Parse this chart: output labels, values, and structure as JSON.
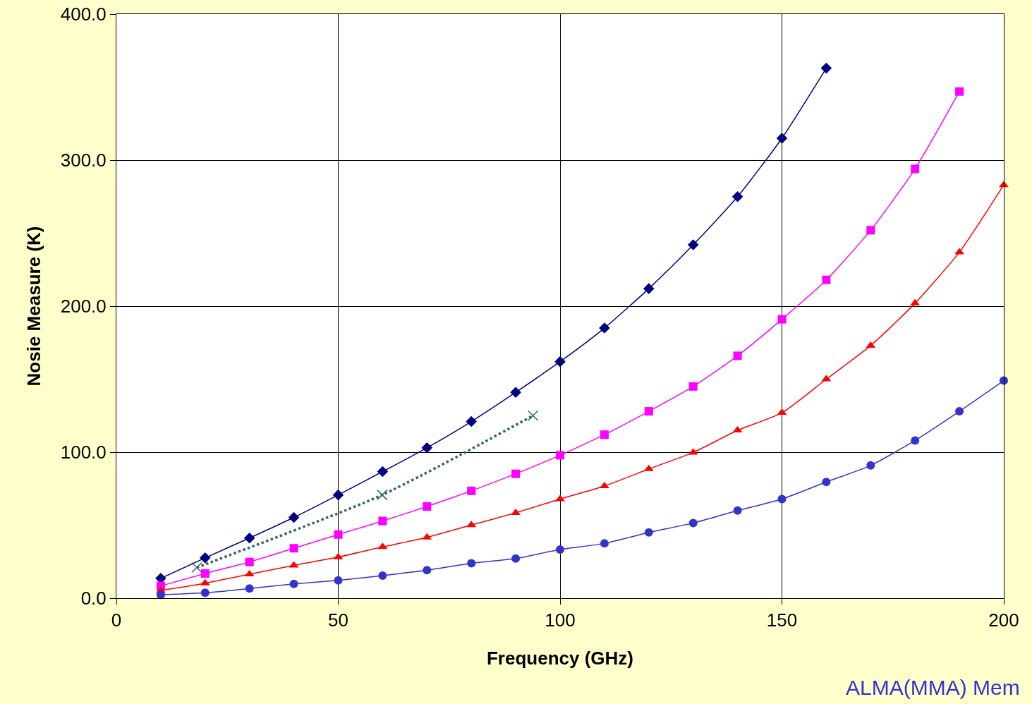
{
  "chart_data": {
    "type": "line",
    "xlabel": "Frequency (GHz)",
    "ylabel": "Nosie Measure (K)",
    "xlim": [
      0,
      200
    ],
    "xticks": [
      0,
      50,
      100,
      150,
      200
    ],
    "ylim": [
      0,
      400
    ],
    "yticks": [
      {
        "value": 0,
        "label": "0.0"
      },
      {
        "value": 100,
        "label": "100.0"
      },
      {
        "value": 200,
        "label": "200.0"
      },
      {
        "value": 300,
        "label": "300.0"
      },
      {
        "value": 400,
        "label": "400.0"
      }
    ],
    "grid": true,
    "annotations": [
      "ALMA(MMA) Mem"
    ],
    "series": [
      {
        "color": "#000080",
        "marker": "diamond",
        "line_style": "solid",
        "x": [
          10,
          20,
          30,
          40,
          50,
          60,
          70,
          80,
          90,
          100,
          110,
          120,
          130,
          140,
          150,
          160
        ],
        "values": [
          13.6,
          27.6,
          41.2,
          55.3,
          70.7,
          86.7,
          103,
          121,
          141,
          162,
          185,
          212,
          242,
          275,
          315,
          363
        ]
      },
      {
        "color": "#ff00ff",
        "marker": "square",
        "line_style": "solid",
        "x": [
          10,
          20,
          30,
          40,
          50,
          60,
          70,
          80,
          90,
          100,
          110,
          120,
          130,
          140,
          150,
          160,
          170,
          180,
          190
        ],
        "values": [
          8.4,
          16.9,
          24.8,
          34.2,
          43.6,
          52.9,
          62.8,
          73.5,
          85.2,
          97.9,
          112,
          128,
          145,
          166,
          191,
          218,
          252,
          294,
          347
        ]
      },
      {
        "color": "#ff0000",
        "marker": "triangle",
        "line_style": "solid",
        "x": [
          10,
          20,
          30,
          40,
          50,
          60,
          70,
          80,
          90,
          100,
          110,
          120,
          130,
          140,
          150,
          160,
          170,
          180,
          190,
          200
        ],
        "values": [
          5.2,
          10.3,
          16.4,
          22.5,
          28.1,
          35.1,
          41.7,
          50.1,
          58.5,
          67.9,
          76.8,
          88.5,
          99.8,
          115,
          127,
          150,
          173,
          202,
          237,
          283
        ]
      },
      {
        "color": "#3333cc",
        "marker": "circle",
        "line_style": "solid",
        "x": [
          10,
          20,
          30,
          40,
          50,
          60,
          70,
          80,
          90,
          100,
          110,
          120,
          130,
          140,
          150,
          160,
          170,
          180,
          190,
          200
        ],
        "values": [
          2.3,
          3.7,
          6.6,
          9.8,
          12.2,
          15.5,
          19.2,
          23.9,
          27.2,
          33.3,
          37.5,
          45,
          51.5,
          60,
          67.9,
          79.6,
          90.9,
          108,
          128,
          149
        ]
      },
      {
        "color": "#336666",
        "marker": "cross",
        "line_style": "dotted",
        "x": [
          18.1,
          59.9,
          93.9
        ],
        "values": [
          21,
          70.7,
          125
        ]
      }
    ]
  }
}
